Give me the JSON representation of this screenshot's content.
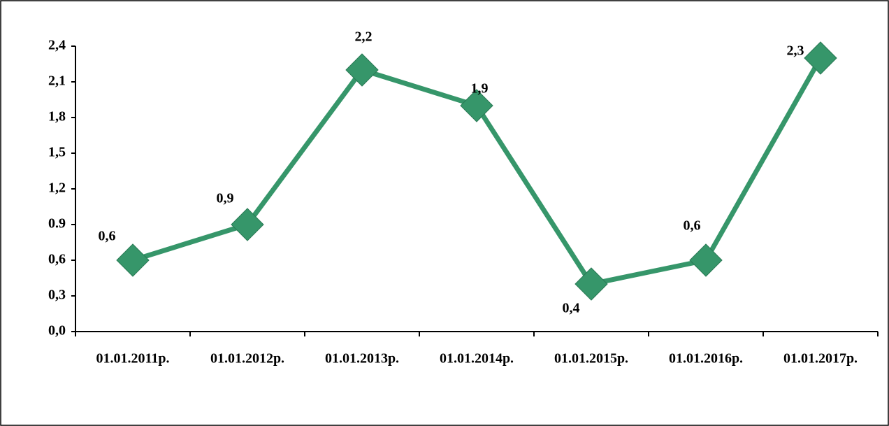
{
  "chart_data": {
    "type": "line",
    "categories": [
      "01.01.2011р.",
      "01.01.2012р.",
      "01.01.2013р.",
      "01.01.2014р.",
      "01.01.2015р.",
      "01.01.2016р.",
      "01.01.2017р."
    ],
    "values": [
      0.6,
      0.9,
      2.2,
      1.9,
      0.4,
      0.6,
      2.3
    ],
    "value_labels": [
      "0,6",
      "0,9",
      "2,2",
      "1,9",
      "0,4",
      "0,6",
      "2,3"
    ],
    "color": "#36966a",
    "ylim": [
      0,
      2.4
    ],
    "yticks": [
      {
        "value": 0,
        "label": "0,0"
      },
      {
        "value": 0.3,
        "label": "0,3"
      },
      {
        "value": 0.6,
        "label": "0,6"
      },
      0.9,
      {
        "value": 1.2,
        "label": "1,2"
      },
      {
        "value": 1.5,
        "label": "1,5"
      },
      {
        "value": 1.8,
        "label": "1,8"
      },
      {
        "value": 2.1,
        "label": "2,1"
      },
      {
        "value": 2.4,
        "label": "2,4"
      }
    ]
  }
}
